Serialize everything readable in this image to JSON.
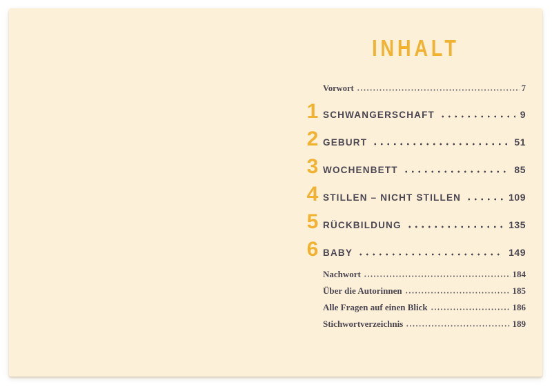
{
  "colors": {
    "surround": "#FFFFFF",
    "paper": "#FCF1D8",
    "accent_yellow": "#F1B231",
    "ink": "#4A4551"
  },
  "toc": {
    "title": "INHALT",
    "front_matter": {
      "label": "Vorwort",
      "page": "7"
    },
    "chapters": [
      {
        "num": "1",
        "label": "SCHWANGERSCHAFT",
        "page": "9"
      },
      {
        "num": "2",
        "label": "GEBURT",
        "page": "51"
      },
      {
        "num": "3",
        "label": "WOCHENBETT",
        "page": "85"
      },
      {
        "num": "4",
        "label": "STILLEN – NICHT STILLEN",
        "page": "109"
      },
      {
        "num": "5",
        "label": "RÜCKBILDUNG",
        "page": "135"
      },
      {
        "num": "6",
        "label": "BABY",
        "page": "149"
      }
    ],
    "back_matter": [
      {
        "label": "Nachwort",
        "page": "184"
      },
      {
        "label": "Über die Autorinnen",
        "page": "185"
      },
      {
        "label": "Alle Fragen auf einen Blick",
        "page": "186"
      },
      {
        "label": "Stichwortverzeichnis",
        "page": "189"
      }
    ]
  }
}
